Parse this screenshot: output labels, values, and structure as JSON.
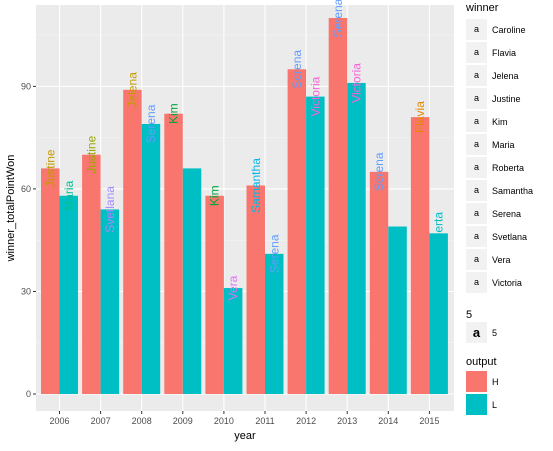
{
  "chart_data": {
    "type": "bar",
    "xlabel": "year",
    "ylabel": "winner_totalPointWon",
    "categories": [
      "2006",
      "2007",
      "2008",
      "2009",
      "2010",
      "2011",
      "2012",
      "2013",
      "2014",
      "2015"
    ],
    "ylim": [
      0,
      113
    ],
    "yticks": [
      0,
      30,
      60,
      90
    ],
    "grid": true,
    "series": [
      {
        "name": "H",
        "color": "#F8766D",
        "values": [
          66,
          70,
          89,
          82,
          58,
          61,
          95,
          110,
          65,
          81
        ]
      },
      {
        "name": "L",
        "color": "#00BFC4",
        "values": [
          58,
          54,
          79,
          66,
          31,
          41,
          87,
          91,
          49,
          47
        ]
      }
    ],
    "labels": [
      {
        "category": "2006",
        "series": "H",
        "text": "Justine",
        "color": "#C49A00"
      },
      {
        "category": "2006",
        "series": "L",
        "text": "Maria",
        "color": "#00C094"
      },
      {
        "category": "2007",
        "series": "H",
        "text": "Justine",
        "color": "#99A800"
      },
      {
        "category": "2007",
        "series": "L",
        "text": "Svetlana",
        "color": "#A58AFF"
      },
      {
        "category": "2008",
        "series": "H",
        "text": "Jelena",
        "color": "#C49A00"
      },
      {
        "category": "2008",
        "series": "L",
        "text": "Serena",
        "color": "#619CFF"
      },
      {
        "category": "2009",
        "series": "H",
        "text": "Kim",
        "color": "#00A63A"
      },
      {
        "category": "2010",
        "series": "H",
        "text": "Kim",
        "color": "#00A63A"
      },
      {
        "category": "2010",
        "series": "L",
        "text": "Vera",
        "color": "#DF70F8"
      },
      {
        "category": "2011",
        "series": "H",
        "text": "Samantha",
        "color": "#00B6EB"
      },
      {
        "category": "2011",
        "series": "L",
        "text": "Serena",
        "color": "#619CFF"
      },
      {
        "category": "2012",
        "series": "H",
        "text": "Serena",
        "color": "#619CFF"
      },
      {
        "category": "2012",
        "series": "L",
        "text": "Victoria",
        "color": "#FB61D7"
      },
      {
        "category": "2013",
        "series": "H",
        "text": "Serena",
        "color": "#619CFF"
      },
      {
        "category": "2013",
        "series": "L",
        "text": "Victoria",
        "color": "#FB61D7"
      },
      {
        "category": "2014",
        "series": "H",
        "text": "Serena",
        "color": "#619CFF"
      },
      {
        "category": "2015",
        "series": "H",
        "text": "Flavia",
        "color": "#E58700"
      },
      {
        "category": "2015",
        "series": "L",
        "text": "Roberta",
        "color": "#00BFC4"
      }
    ],
    "legend": {
      "placement": "right",
      "winner": {
        "title": "winner",
        "key_glyph": "a",
        "items": [
          {
            "label": "Caroline",
            "color": "#F8766D"
          },
          {
            "label": "Flavia",
            "color": "#E58700"
          },
          {
            "label": "Jelena",
            "color": "#C49A00"
          },
          {
            "label": "Justine",
            "color": "#99A800"
          },
          {
            "label": "Kim",
            "color": "#53B400"
          },
          {
            "label": "Maria",
            "color": "#00BC56"
          },
          {
            "label": "Roberta",
            "color": "#00C094"
          },
          {
            "label": "Samantha",
            "color": "#00BFC4"
          },
          {
            "label": "Serena",
            "color": "#00B6EB"
          },
          {
            "label": "Svetlana",
            "color": "#619CFF"
          },
          {
            "label": "Vera",
            "color": "#DF70F8"
          },
          {
            "label": "Victoria",
            "color": "#FB61D7"
          }
        ]
      },
      "size": {
        "title": "5",
        "key_glyph": "a",
        "items": [
          {
            "label": "5"
          }
        ]
      },
      "output": {
        "title": "output",
        "items": [
          {
            "label": "H",
            "color": "#F8766D"
          },
          {
            "label": "L",
            "color": "#00BFC4"
          }
        ]
      }
    }
  }
}
